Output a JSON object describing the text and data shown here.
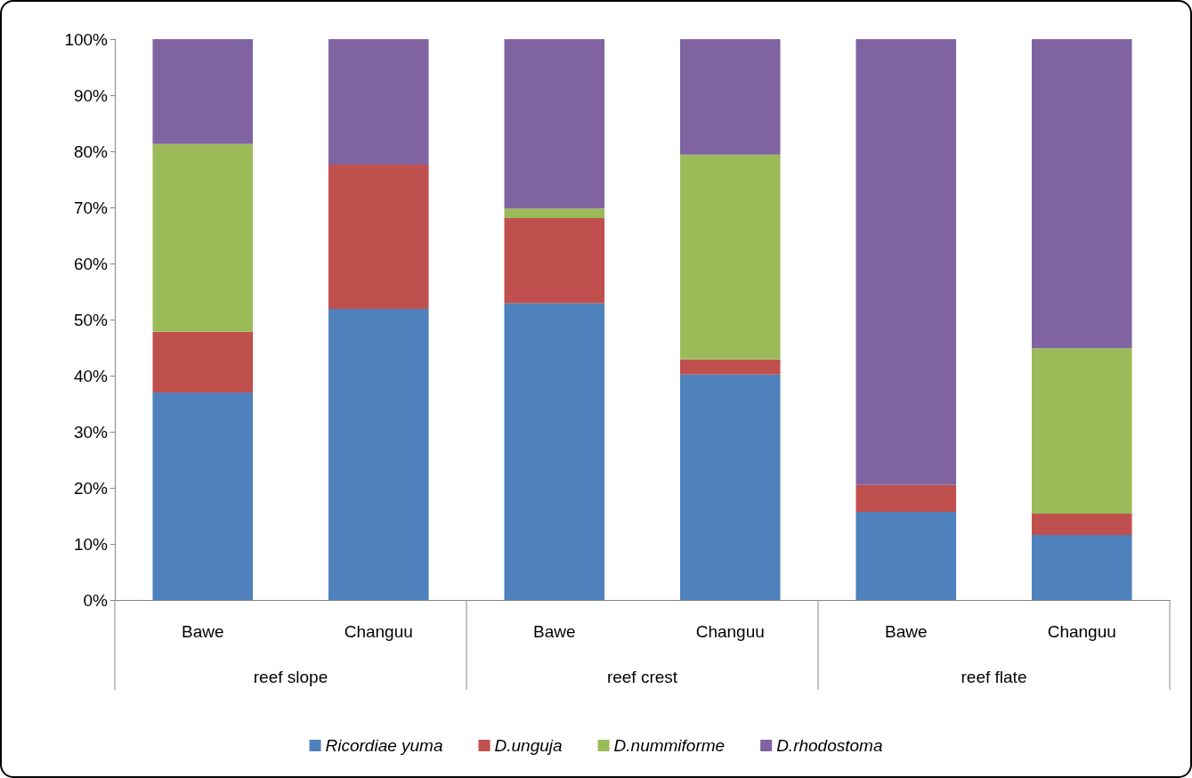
{
  "chart_data": {
    "type": "bar",
    "stacked": true,
    "categories": [
      "Bawe",
      "Changuu",
      "Bawe",
      "Changuu",
      "Bawe",
      "Changuu"
    ],
    "series": [
      {
        "name": "Ricordiae yuma",
        "color": "#4f81bd",
        "values": [
          37.0,
          51.9,
          52.9,
          40.2,
          15.7,
          11.6
        ]
      },
      {
        "name": "D.unguja",
        "color": "#c0504d",
        "values": [
          10.8,
          25.7,
          15.2,
          2.7,
          4.8,
          3.8
        ]
      },
      {
        "name": "D.nummiforme",
        "color": "#9bbb59",
        "values": [
          33.5,
          0,
          1.7,
          36.5,
          0,
          29.5
        ]
      },
      {
        "name": "D.rhodostoma",
        "color": "#8064a2",
        "values": [
          18.7,
          22.4,
          30.2,
          20.6,
          79.5,
          55.1
        ]
      }
    ],
    "ylim": [
      0,
      100
    ],
    "yticks": [
      {
        "value": 0,
        "label": "0%"
      },
      {
        "value": 10,
        "label": "10%"
      },
      {
        "value": 20,
        "label": "20%"
      },
      {
        "value": 30,
        "label": "30%"
      },
      {
        "value": 40,
        "label": "40%"
      },
      {
        "value": 50,
        "label": "50%"
      },
      {
        "value": 60,
        "label": "60%"
      },
      {
        "value": 70,
        "label": "70%"
      },
      {
        "value": 80,
        "label": "80%"
      },
      {
        "value": 90,
        "label": "90%"
      },
      {
        "value": 100,
        "label": "100%"
      }
    ],
    "annotations": [
      "reef slope",
      "reef crest",
      "reef flate"
    ],
    "grid": false,
    "legend": "bottom"
  }
}
